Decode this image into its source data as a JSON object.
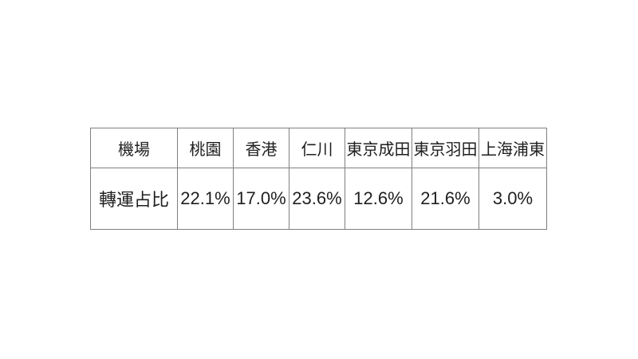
{
  "colors": {
    "background": "#ffffff",
    "border": "#7f7f7f",
    "text": "#1f1f1f"
  },
  "table": {
    "header_row": [
      "機場",
      "桃園",
      "香港",
      "仁川",
      "東京成田",
      "東京羽田",
      "上海浦東"
    ],
    "data_row": [
      "轉運占比",
      "22.1%",
      "17.0%",
      "23.6%",
      "12.6%",
      "21.6%",
      "3.0%"
    ]
  },
  "chart_data": {
    "type": "table",
    "title": "",
    "row_labels": [
      "機場",
      "轉運占比"
    ],
    "categories": [
      "桃園",
      "香港",
      "仁川",
      "東京成田",
      "東京羽田",
      "上海浦東"
    ],
    "values": [
      22.1,
      17.0,
      23.6,
      12.6,
      21.6,
      3.0
    ],
    "value_unit": "%",
    "grid": true,
    "legend_position": "none"
  }
}
